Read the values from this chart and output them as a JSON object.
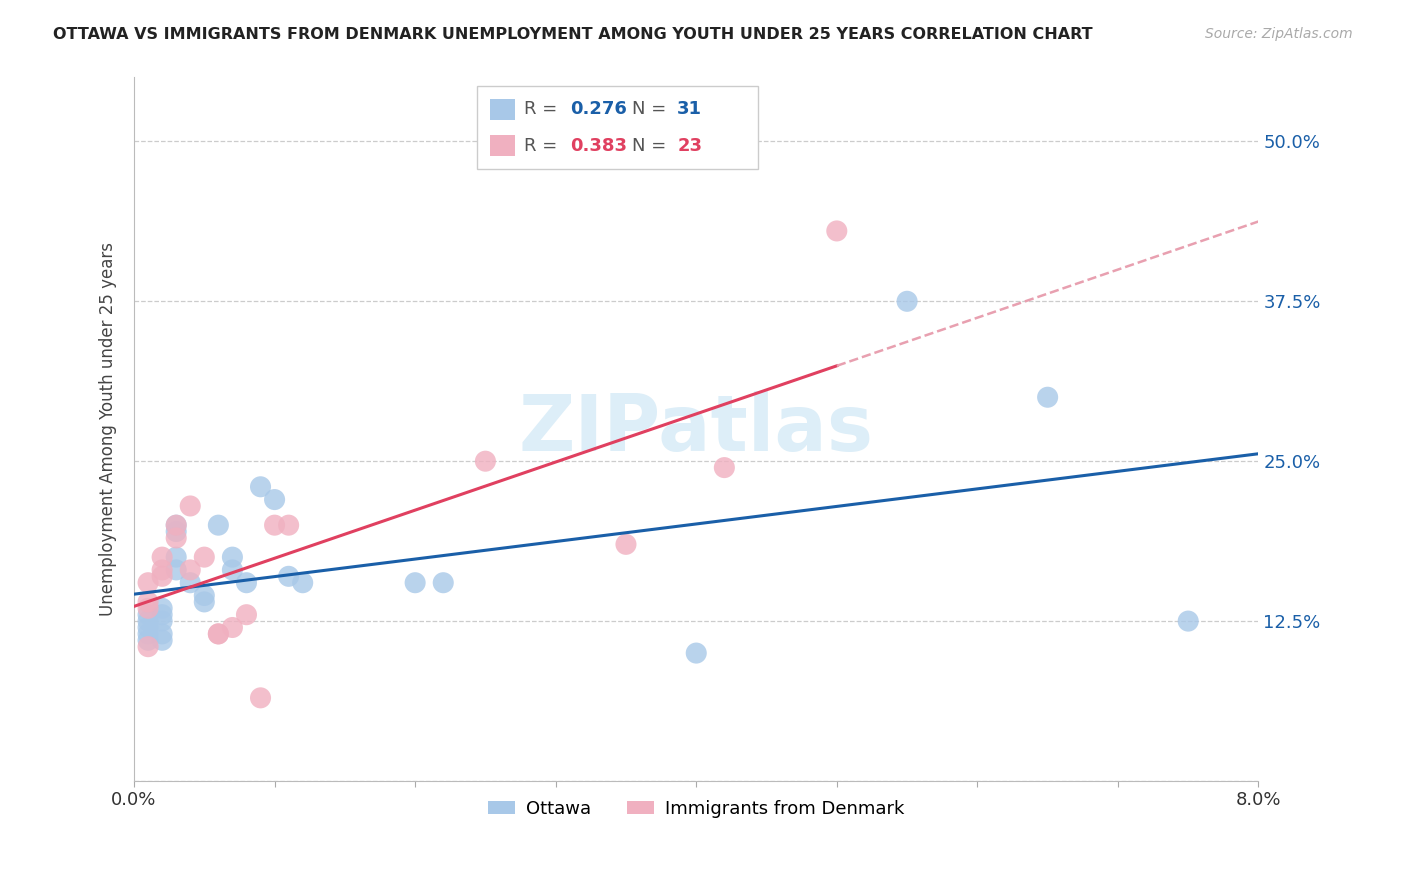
{
  "title": "OTTAWA VS IMMIGRANTS FROM DENMARK UNEMPLOYMENT AMONG YOUTH UNDER 25 YEARS CORRELATION CHART",
  "source": "Source: ZipAtlas.com",
  "ylabel": "Unemployment Among Youth under 25 years",
  "legend_r": [
    0.276,
    0.383
  ],
  "legend_n": [
    31,
    23
  ],
  "right_yticks": [
    0.0,
    0.125,
    0.25,
    0.375,
    0.5
  ],
  "right_yticklabels": [
    "",
    "12.5%",
    "25.0%",
    "37.5%",
    "50.0%"
  ],
  "blue_scatter_color": "#a8c8e8",
  "pink_scatter_color": "#f0b0c0",
  "blue_line_color": "#1a5fa8",
  "pink_line_color": "#e04060",
  "pink_dash_color": "#e8a0b0",
  "watermark_color": "#ddeef8",
  "watermark_text": "ZIPatlas",
  "ottawa_x": [
    0.001,
    0.001,
    0.001,
    0.001,
    0.001,
    0.002,
    0.002,
    0.002,
    0.002,
    0.002,
    0.003,
    0.003,
    0.003,
    0.003,
    0.004,
    0.005,
    0.005,
    0.006,
    0.007,
    0.007,
    0.008,
    0.009,
    0.01,
    0.011,
    0.012,
    0.02,
    0.022,
    0.04,
    0.055,
    0.065,
    0.075
  ],
  "ottawa_y": [
    0.125,
    0.13,
    0.12,
    0.115,
    0.11,
    0.135,
    0.13,
    0.125,
    0.115,
    0.11,
    0.2,
    0.195,
    0.175,
    0.165,
    0.155,
    0.145,
    0.14,
    0.2,
    0.175,
    0.165,
    0.155,
    0.23,
    0.22,
    0.16,
    0.155,
    0.155,
    0.155,
    0.1,
    0.375,
    0.3,
    0.125
  ],
  "denmark_x": [
    0.001,
    0.001,
    0.001,
    0.001,
    0.002,
    0.002,
    0.002,
    0.003,
    0.003,
    0.004,
    0.004,
    0.005,
    0.006,
    0.006,
    0.007,
    0.008,
    0.009,
    0.01,
    0.011,
    0.025,
    0.035,
    0.042,
    0.05
  ],
  "denmark_y": [
    0.135,
    0.14,
    0.155,
    0.105,
    0.165,
    0.175,
    0.16,
    0.2,
    0.19,
    0.215,
    0.165,
    0.175,
    0.115,
    0.115,
    0.12,
    0.13,
    0.065,
    0.2,
    0.2,
    0.25,
    0.185,
    0.245,
    0.43
  ],
  "xlim": [
    0.0,
    0.08
  ],
  "ylim": [
    0.0,
    0.55
  ],
  "figsize": [
    14.06,
    8.92
  ],
  "dpi": 100
}
